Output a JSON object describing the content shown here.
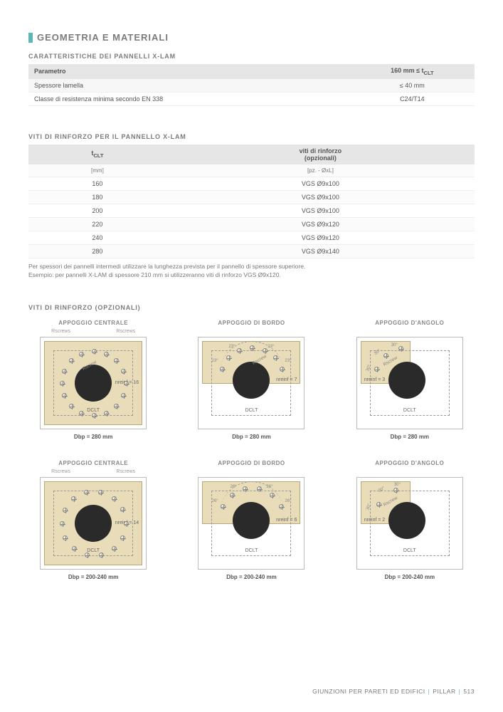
{
  "section": {
    "title": "GEOMETRIA E MATERIALI"
  },
  "table1": {
    "heading": "CARATTERISTICHE DEI PANNELLI X-LAM",
    "col1": "Parametro",
    "col2_html": "160 mm ≤ t",
    "col2_sub": "CLT",
    "rows": [
      {
        "p": "Spessore lamella",
        "v": "≤ 40 mm"
      },
      {
        "p": "Classe di resistenza minima secondo EN 338",
        "v": "C24/T14"
      }
    ]
  },
  "table2": {
    "heading": "VITI DI RINFORZO PER IL PANNELLO X-LAM",
    "col1": "t",
    "col1_sub": "CLT",
    "col2_l1": "viti di rinforzo",
    "col2_l2": "(opzionali)",
    "unit1": "[mm]",
    "unit2": "[pz. - ØxL]",
    "rows": [
      {
        "t": "160",
        "v": "VGS Ø9x100"
      },
      {
        "t": "180",
        "v": "VGS Ø9x100"
      },
      {
        "t": "200",
        "v": "VGS Ø9x100"
      },
      {
        "t": "220",
        "v": "VGS Ø9x120"
      },
      {
        "t": "240",
        "v": "VGS Ø9x120"
      },
      {
        "t": "280",
        "v": "VGS Ø9x140"
      }
    ],
    "note1": "Per spessori dei pannelli intermedi utilizzare la lunghezza prevista per il pannello di spessore superiore.",
    "note2": "Esempio: per pannelli X-LAM di spessore 210 mm si utilizzeranno viti di rinforzo VGS Ø9x120."
  },
  "diagrams": {
    "heading": "VITI DI RINFORZO (OPZIONALI)",
    "titles": {
      "central": "APPOGGIO CENTRALE",
      "edge": "APPOGGIO DI BORDO",
      "corner": "APPOGGIO D'ANGOLO"
    },
    "labels": {
      "rscrews": "Rscrews",
      "rscrew": "Rscrew",
      "dclt": "DCLT",
      "nreinf16": "nreinf = 16",
      "nreinf14": "nreinf = 14",
      "nreinf7": "nreinf = 7",
      "nreinf6": "nreinf = 6",
      "nreinf3": "nreinf = 3",
      "nreinf2": "nreinf = 2",
      "ang23": "23°",
      "ang26": "26°",
      "ang30": "30°"
    },
    "row1cap": "Dbp = 280 mm",
    "row2cap": "Dbp = 200-240 mm"
  },
  "footer": {
    "text1": "GIUNZIONI PER PARETI ED EDIFICI",
    "text2": "PILLAR",
    "page": "513"
  },
  "colors": {
    "accent": "#5db6b5",
    "plate": "#e8dcb9",
    "hole": "#2a2a2a"
  }
}
